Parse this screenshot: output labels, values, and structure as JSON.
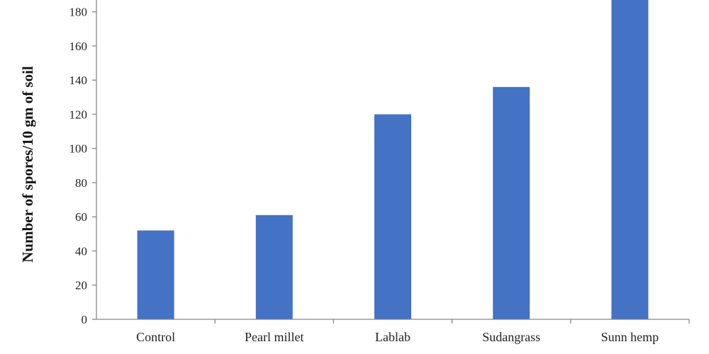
{
  "chart_data": {
    "type": "bar",
    "categories": [
      "Control",
      "Pearl millet",
      "Lablab",
      "Sudangrass",
      "Sunn hemp"
    ],
    "values": [
      52,
      61,
      120,
      136,
      187
    ],
    "title": "",
    "xlabel": "",
    "ylabel": "Number of spores/10 gm of soil",
    "ylim": [
      0,
      188
    ],
    "yticks": [
      0,
      20,
      40,
      60,
      80,
      100,
      120,
      140,
      160,
      180
    ],
    "grid": false,
    "bar_color": "#4472C4"
  }
}
